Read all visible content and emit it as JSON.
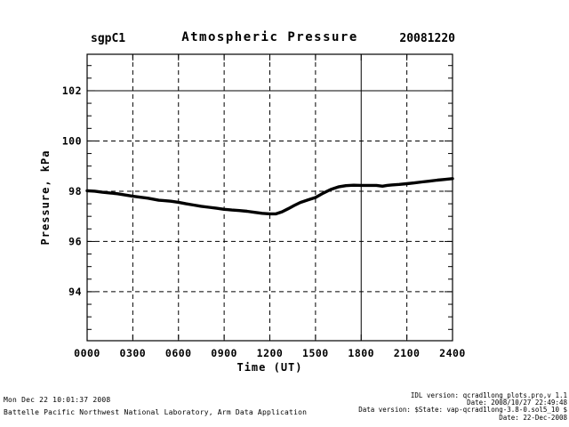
{
  "header": {
    "site": "sgpC1",
    "title": "Atmospheric Pressure",
    "date": "20081220"
  },
  "chart_data": {
    "type": "line",
    "title": "Atmospheric Pressure",
    "xlabel": "Time (UT)",
    "ylabel": "Pressure, kPa",
    "xlim": [
      0,
      24
    ],
    "ylim": [
      92.05,
      103.45
    ],
    "xticks": {
      "values": [
        0,
        3,
        6,
        9,
        12,
        15,
        18,
        21,
        24
      ],
      "labels": [
        "0000",
        "0300",
        "0600",
        "0900",
        "1200",
        "1500",
        "1800",
        "2100",
        "2400"
      ]
    },
    "yticks": [
      94,
      96,
      98,
      100,
      102
    ],
    "y_minor_step": 0.5,
    "grid": "dashed",
    "solid_grid_x": [
      18
    ],
    "solid_grid_y": [
      102
    ],
    "line_color": "#000000",
    "line_width": 3.4,
    "series": [
      {
        "name": "Atmospheric Pressure (kPa)",
        "x": [
          0,
          0.5,
          1,
          1.5,
          2,
          2.5,
          3,
          3.5,
          4,
          4.7,
          5,
          5.5,
          6,
          6.5,
          7,
          7.5,
          8,
          8.5,
          9,
          9.5,
          10,
          10.5,
          11,
          11.5,
          12,
          12.4,
          12.8,
          13.2,
          13.6,
          14,
          14.5,
          15,
          15.5,
          16,
          16.5,
          17,
          17.5,
          18,
          18.5,
          19,
          19.4,
          19.7,
          20,
          20.5,
          21,
          21.5,
          22,
          22.5,
          23,
          23.5,
          24
        ],
        "y": [
          98.02,
          98.0,
          97.96,
          97.93,
          97.9,
          97.85,
          97.8,
          97.76,
          97.72,
          97.64,
          97.63,
          97.6,
          97.56,
          97.5,
          97.45,
          97.4,
          97.36,
          97.32,
          97.28,
          97.25,
          97.23,
          97.2,
          97.16,
          97.12,
          97.1,
          97.1,
          97.18,
          97.3,
          97.43,
          97.55,
          97.65,
          97.75,
          97.92,
          98.07,
          98.17,
          98.22,
          98.24,
          98.23,
          98.23,
          98.23,
          98.2,
          98.23,
          98.25,
          98.27,
          98.3,
          98.33,
          98.37,
          98.4,
          98.44,
          98.47,
          98.5
        ]
      }
    ]
  },
  "footer": {
    "left": [
      "Mon Dec 22 10:01:37 2008",
      "Battelle Pacific Northwest National Laboratory, Arm Data Application"
    ],
    "right": [
      "IDL version: qcrad1long_plots.pro,v 1.1",
      "Date: 2008/10/27 22:49:48",
      "Data version: $State: vap-qcrad1long-3.8-0.sol5_10 $",
      "Date: 22-Dec-2008"
    ]
  }
}
